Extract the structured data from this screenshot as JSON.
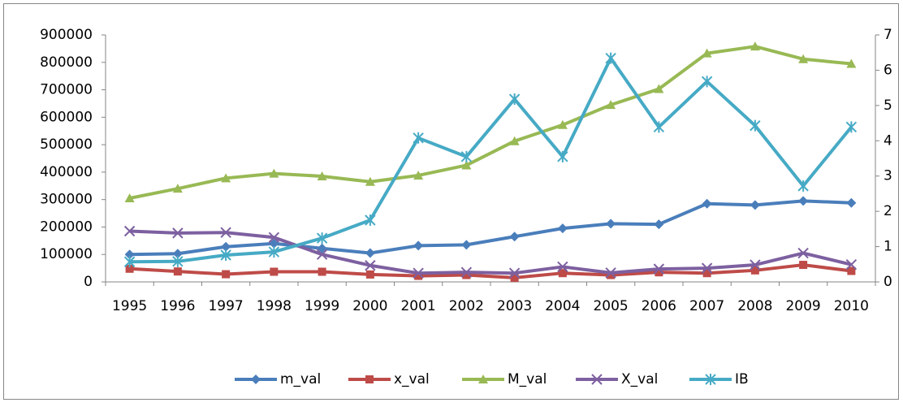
{
  "chart_data": {
    "type": "line",
    "categories": [
      "1995",
      "1996",
      "1997",
      "1998",
      "1999",
      "2000",
      "2001",
      "2002",
      "2003",
      "2004",
      "2005",
      "2006",
      "2007",
      "2008",
      "2009",
      "2010"
    ],
    "series": [
      {
        "name": "m_val",
        "color": "#4a7ebb",
        "marker": "diamond",
        "values": [
          100000,
          103000,
          128000,
          140000,
          122000,
          105000,
          132000,
          135000,
          165000,
          195000,
          212000,
          210000,
          285000,
          280000,
          295000,
          288000
        ]
      },
      {
        "name": "x_val",
        "color": "#be4b48",
        "marker": "square",
        "values": [
          48000,
          38000,
          28000,
          37000,
          37000,
          27000,
          22000,
          25000,
          15000,
          32000,
          25000,
          35000,
          32000,
          42000,
          62000,
          40000
        ]
      },
      {
        "name": "M_val",
        "color": "#98b954",
        "marker": "triangle",
        "values": [
          305000,
          340000,
          378000,
          395000,
          385000,
          365000,
          388000,
          425000,
          513000,
          572000,
          645000,
          703000,
          833000,
          858000,
          812000,
          795000
        ]
      },
      {
        "name": "X_val",
        "color": "#7d60a0",
        "marker": "x",
        "values": [
          185000,
          178000,
          180000,
          162000,
          100000,
          60000,
          32000,
          35000,
          32000,
          55000,
          33000,
          47000,
          50000,
          62000,
          105000,
          63000
        ]
      },
      {
        "name": "IB",
        "color": "#46aac5",
        "marker": "star",
        "axis": "y2",
        "values": [
          0.57,
          0.58,
          0.76,
          0.85,
          1.24,
          1.75,
          4.08,
          3.55,
          5.18,
          3.55,
          6.34,
          4.39,
          5.68,
          4.43,
          2.72,
          4.39
        ]
      }
    ],
    "ylim": [
      0,
      900000
    ],
    "yticks": [
      0,
      100000,
      200000,
      300000,
      400000,
      500000,
      600000,
      700000,
      800000,
      900000
    ],
    "y2lim": [
      0,
      7
    ],
    "y2ticks": [
      0,
      1,
      2,
      3,
      4,
      5,
      6,
      7
    ],
    "legend": "bottom"
  }
}
